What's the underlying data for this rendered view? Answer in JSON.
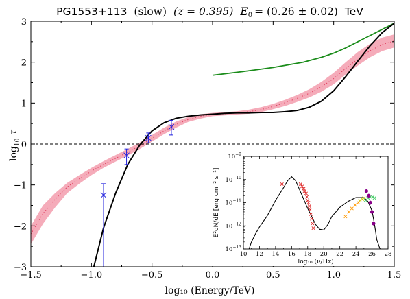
{
  "chart_data": [
    {
      "type": "line",
      "title": {
        "source": "PG1553+113",
        "model": "(slow)",
        "redshift": "(z = 0.395)",
        "e0_label": "E",
        "e0_sub": "0",
        "e0_value": "= (0.26 ± 0.02)",
        "unit": "TeV"
      },
      "xlabel": "log₁₀ (Energy/TeV)",
      "ylabel": {
        "log": "log",
        "sub": "10",
        "tau": "τ"
      },
      "xlim": [
        -1.5,
        1.5
      ],
      "ylim": [
        -3,
        3
      ],
      "xticks": [
        "−1.5",
        "−1.0",
        "−0.5",
        "0.0",
        "0.5",
        "1.0",
        "1.5"
      ],
      "yticks": [
        "−3",
        "−2",
        "−1",
        "0",
        "1",
        "2",
        "3"
      ],
      "grid": false,
      "series": [
        {
          "role": "black-model",
          "color": "#000000",
          "x": [
            -0.98,
            -0.9,
            -0.8,
            -0.7,
            -0.6,
            -0.5,
            -0.4,
            -0.3,
            -0.2,
            -0.1,
            0.0,
            0.1,
            0.2,
            0.3,
            0.4,
            0.5,
            0.6,
            0.7,
            0.8,
            0.9,
            1.0,
            1.1,
            1.2,
            1.3,
            1.4,
            1.5
          ],
          "y": [
            -3.0,
            -2.05,
            -1.2,
            -0.5,
            -0.02,
            0.32,
            0.52,
            0.63,
            0.68,
            0.71,
            0.73,
            0.75,
            0.76,
            0.76,
            0.77,
            0.77,
            0.79,
            0.82,
            0.9,
            1.05,
            1.3,
            1.65,
            2.03,
            2.4,
            2.72,
            2.95
          ]
        },
        {
          "role": "green-model",
          "color": "#1a8c1a",
          "x": [
            0.0,
            0.25,
            0.5,
            0.75,
            0.9,
            1.0,
            1.1,
            1.2,
            1.3,
            1.4,
            1.5
          ],
          "y": [
            1.68,
            1.77,
            1.87,
            2.0,
            2.12,
            2.22,
            2.35,
            2.5,
            2.65,
            2.8,
            2.95
          ]
        },
        {
          "role": "pink-band-center",
          "color": "#e04060",
          "x": [
            -1.5,
            -1.4,
            -1.3,
            -1.2,
            -1.1,
            -1.0,
            -0.9,
            -0.8,
            -0.7,
            -0.6,
            -0.5,
            -0.4,
            -0.3,
            -0.2,
            -0.1,
            0.0,
            0.1,
            0.2,
            0.3,
            0.4,
            0.5,
            0.6,
            0.7,
            0.8,
            0.9,
            1.0,
            1.1,
            1.2,
            1.3,
            1.4,
            1.5
          ],
          "y": [
            -2.2,
            -1.7,
            -1.35,
            -1.05,
            -0.85,
            -0.66,
            -0.5,
            -0.35,
            -0.2,
            -0.04,
            0.14,
            0.32,
            0.48,
            0.6,
            0.68,
            0.72,
            0.74,
            0.76,
            0.79,
            0.84,
            0.92,
            1.01,
            1.12,
            1.24,
            1.4,
            1.6,
            1.85,
            2.08,
            2.28,
            2.43,
            2.52
          ]
        },
        {
          "role": "pink-band-upper",
          "x": [
            -1.5,
            -1.4,
            -1.3,
            -1.2,
            -1.1,
            -1.0,
            -0.9,
            -0.8,
            -0.7,
            -0.6,
            -0.5,
            -0.4,
            -0.3,
            -0.2,
            -0.1,
            0.0,
            0.1,
            0.2,
            0.3,
            0.4,
            0.5,
            0.6,
            0.7,
            0.8,
            0.9,
            1.0,
            1.1,
            1.2,
            1.3,
            1.4,
            1.5
          ],
          "y": [
            -2.0,
            -1.5,
            -1.2,
            -0.95,
            -0.76,
            -0.58,
            -0.42,
            -0.27,
            -0.12,
            0.04,
            0.22,
            0.4,
            0.55,
            0.66,
            0.73,
            0.76,
            0.78,
            0.8,
            0.84,
            0.9,
            0.98,
            1.08,
            1.2,
            1.34,
            1.52,
            1.74,
            2.0,
            2.25,
            2.45,
            2.6,
            2.68
          ]
        },
        {
          "role": "pink-band-lower",
          "x": [
            -1.5,
            -1.4,
            -1.3,
            -1.2,
            -1.1,
            -1.0,
            -0.9,
            -0.8,
            -0.7,
            -0.6,
            -0.5,
            -0.4,
            -0.3,
            -0.2,
            -0.1,
            0.0,
            0.1,
            0.2,
            0.3,
            0.4,
            0.5,
            0.6,
            0.7,
            0.8,
            0.9,
            1.0,
            1.1,
            1.2,
            1.3,
            1.4,
            1.5
          ],
          "y": [
            -2.45,
            -1.95,
            -1.55,
            -1.2,
            -0.97,
            -0.76,
            -0.58,
            -0.43,
            -0.28,
            -0.12,
            0.06,
            0.24,
            0.4,
            0.54,
            0.62,
            0.68,
            0.7,
            0.72,
            0.74,
            0.78,
            0.85,
            0.93,
            1.03,
            1.14,
            1.28,
            1.46,
            1.7,
            1.92,
            2.12,
            2.27,
            2.36
          ]
        }
      ],
      "reference_line": {
        "y": 0,
        "style": "dashed"
      },
      "points": {
        "color": "#2222dd",
        "x": [
          -0.9,
          -0.71,
          -0.53,
          -0.34
        ],
        "y": [
          -1.25,
          -0.28,
          0.15,
          0.42
        ],
        "yerr_low": [
          -3.0,
          -0.5,
          0.03,
          0.22
        ],
        "yerr_high": [
          -0.97,
          -0.12,
          0.27,
          0.58
        ]
      }
    },
    {
      "type": "scatter",
      "xlabel": "log₁₀ (ν/Hz)",
      "ylabel": "E²dN/dE [erg cm⁻² s⁻¹]",
      "xlim": [
        10,
        28
      ],
      "ylim_log10": [
        -13,
        -9
      ],
      "xticks": [
        "10",
        "12",
        "14",
        "16",
        "18",
        "20",
        "22",
        "24",
        "26",
        "28"
      ],
      "yticks": [
        {
          "base": "10",
          "exp": "−9",
          "v": -9
        },
        {
          "base": "10",
          "exp": "−10",
          "v": -10
        },
        {
          "base": "10",
          "exp": "−11",
          "v": -11
        },
        {
          "base": "10",
          "exp": "−12",
          "v": -12
        },
        {
          "base": "10",
          "exp": "−13",
          "v": -13
        }
      ],
      "sed_model": {
        "x": [
          10.7,
          11,
          11.5,
          12,
          13,
          14,
          15,
          15.5,
          16,
          16.5,
          17,
          18,
          19,
          19.5,
          20,
          20.5,
          21,
          22,
          23,
          24,
          25,
          25.5,
          26,
          26.3,
          26.6,
          27
        ],
        "y": [
          -13.0,
          -12.7,
          -12.35,
          -12.05,
          -11.55,
          -10.9,
          -10.35,
          -10.05,
          -9.88,
          -10.05,
          -10.45,
          -11.25,
          -11.95,
          -12.15,
          -12.18,
          -11.95,
          -11.6,
          -11.2,
          -10.95,
          -10.78,
          -10.78,
          -10.95,
          -11.35,
          -11.9,
          -12.6,
          -13.0
        ]
      },
      "groups": [
        {
          "color": "#dd2222",
          "marker": "x",
          "x": [
            14.8,
            17.1,
            17.3,
            17.5,
            17.6,
            17.8,
            17.9,
            18.0,
            18.1,
            18.2,
            18.3,
            18.4,
            18.5,
            18.6,
            18.7
          ],
          "y": [
            -10.2,
            -10.2,
            -10.3,
            -10.4,
            -10.5,
            -10.6,
            -10.75,
            -10.9,
            -11.0,
            -11.15,
            -11.3,
            -11.5,
            -11.7,
            -11.9,
            -12.1
          ]
        },
        {
          "color": "#ff9900",
          "marker": "x",
          "x": [
            22.7,
            23.1,
            23.5,
            23.9,
            24.3
          ],
          "y": [
            -11.6,
            -11.4,
            -11.25,
            -11.1,
            -11.0
          ]
        },
        {
          "color": "#cccc00",
          "marker": "x",
          "x": [
            24.5,
            24.8,
            25.0
          ],
          "y": [
            -10.9,
            -10.85,
            -10.8
          ]
        },
        {
          "color": "#44cc66",
          "marker": "x",
          "x": [
            25.2,
            25.5,
            25.8,
            26.1,
            26.3
          ],
          "y": [
            -10.9,
            -10.8,
            -10.75,
            -10.75,
            -10.8
          ]
        },
        {
          "color": "#880088",
          "marker": "o",
          "x": [
            25.3,
            25.6,
            25.8,
            26.0,
            26.2
          ],
          "y": [
            -10.5,
            -10.7,
            -11.0,
            -11.4,
            -11.9
          ]
        }
      ]
    }
  ]
}
